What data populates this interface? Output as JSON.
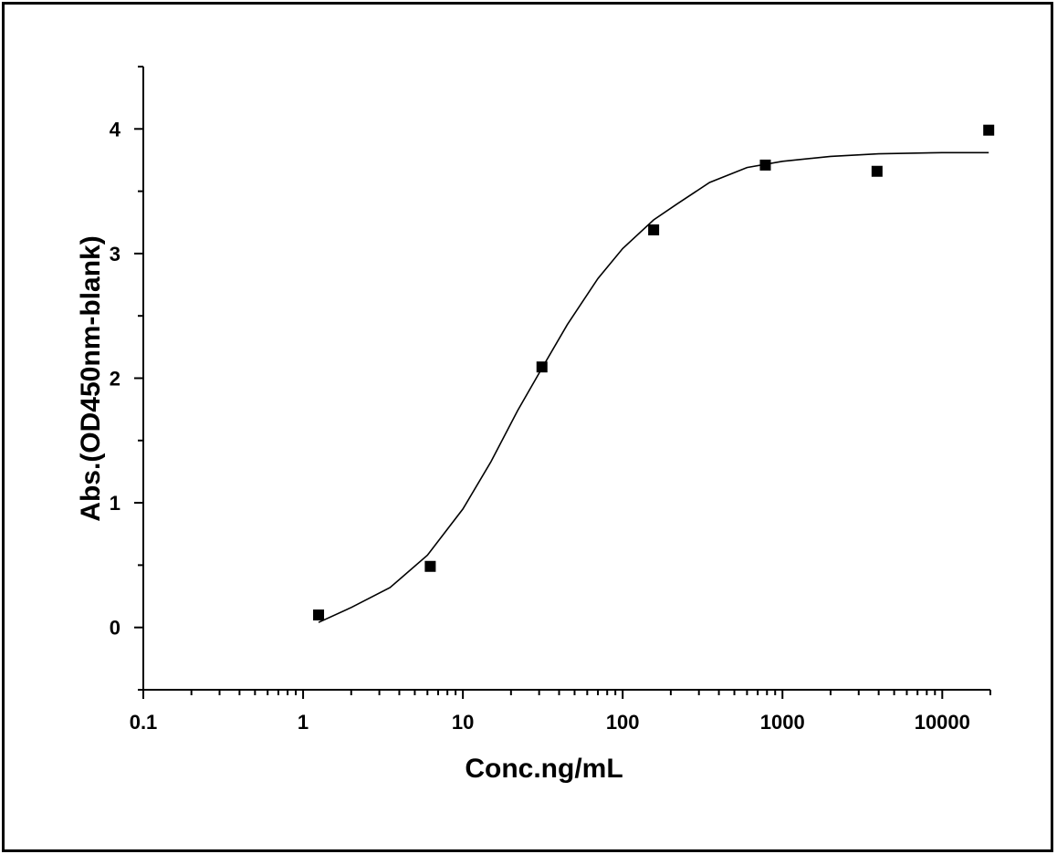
{
  "chart_data": {
    "type": "scatter",
    "title": "",
    "xlabel": "Conc.ng/mL",
    "ylabel": "Abs.(OD450nm-blank)",
    "x_scale": "log",
    "xlim": [
      0.1,
      20000
    ],
    "ylim": [
      -0.5,
      4.5
    ],
    "x_ticks": [
      {
        "value": 0.1,
        "label": "0.1"
      },
      {
        "value": 1,
        "label": "1"
      },
      {
        "value": 10,
        "label": "10"
      },
      {
        "value": 100,
        "label": "100"
      },
      {
        "value": 1000,
        "label": "1000"
      },
      {
        "value": 10000,
        "label": "10000"
      }
    ],
    "y_ticks": [
      {
        "value": 0,
        "label": "0"
      },
      {
        "value": 1,
        "label": "1"
      },
      {
        "value": 2,
        "label": "2"
      },
      {
        "value": 3,
        "label": "3"
      },
      {
        "value": 4,
        "label": "4"
      }
    ],
    "grid": false,
    "legend": "none",
    "series": [
      {
        "style": "markers",
        "marker": "square",
        "color": "#000000",
        "x": [
          1.25,
          6.25,
          31.25,
          156.25,
          781.25,
          3906.25,
          19531.25
        ],
        "y": [
          0.1,
          0.49,
          2.09,
          3.19,
          3.71,
          3.66,
          3.99
        ]
      },
      {
        "style": "line",
        "color": "#000000",
        "x": [
          1.25,
          2,
          3.5,
          6,
          10,
          15,
          22,
          31.25,
          45,
          70,
          100,
          156.25,
          220,
          350,
          600,
          1000,
          2000,
          4000,
          10000,
          19531.25
        ],
        "y": [
          0.04,
          0.16,
          0.32,
          0.58,
          0.95,
          1.33,
          1.74,
          2.08,
          2.43,
          2.8,
          3.04,
          3.27,
          3.4,
          3.57,
          3.69,
          3.74,
          3.78,
          3.8,
          3.81,
          3.81
        ]
      }
    ]
  }
}
